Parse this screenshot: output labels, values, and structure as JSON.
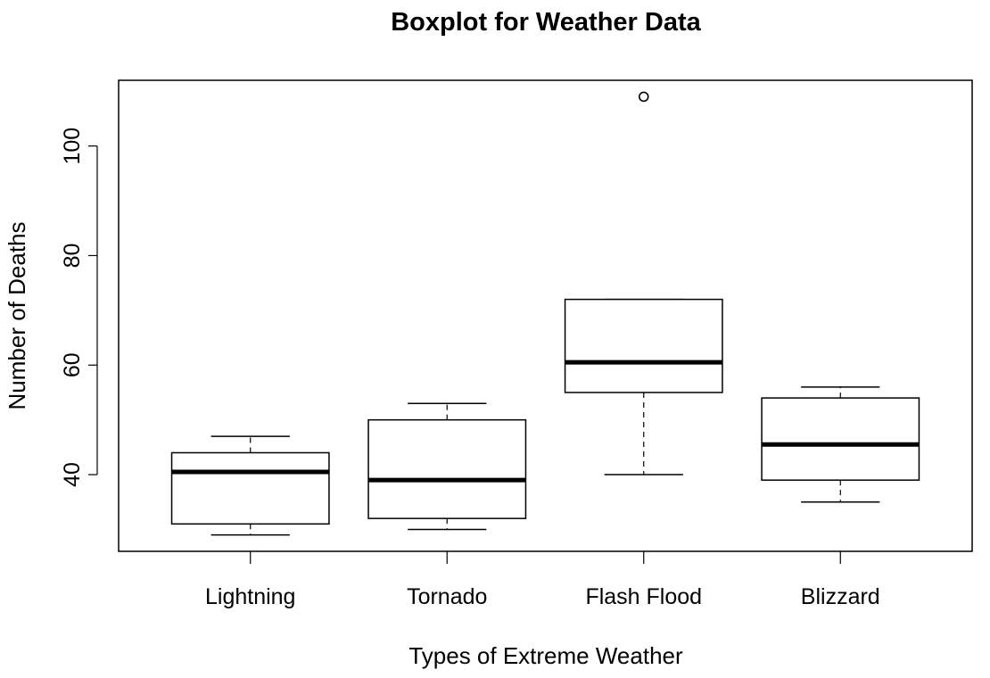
{
  "chart_data": {
    "type": "boxplot",
    "title": "Boxplot for Weather Data",
    "xlabel": "Types of Extreme Weather",
    "ylabel": "Number of Deaths",
    "ylim": [
      26,
      112
    ],
    "yticks": [
      40,
      60,
      80,
      100
    ],
    "grid": false,
    "categories": [
      "Lightning",
      "Tornado",
      "Flash Flood",
      "Blizzard"
    ],
    "boxes": [
      {
        "category": "Lightning",
        "whisker_low": 29,
        "q1": 31,
        "median": 40.5,
        "q3": 44,
        "whisker_high": 47,
        "outliers": []
      },
      {
        "category": "Tornado",
        "whisker_low": 30,
        "q1": 32,
        "median": 39,
        "q3": 50,
        "whisker_high": 53,
        "outliers": []
      },
      {
        "category": "Flash Flood",
        "whisker_low": 40,
        "q1": 55,
        "median": 60.5,
        "q3": 72,
        "whisker_high": 72,
        "outliers": [
          109
        ]
      },
      {
        "category": "Blizzard",
        "whisker_low": 35,
        "q1": 39,
        "median": 45.5,
        "q3": 54,
        "whisker_high": 56,
        "outliers": []
      }
    ],
    "colors": {
      "stroke": "#000000",
      "fill": "#ffffff"
    }
  }
}
